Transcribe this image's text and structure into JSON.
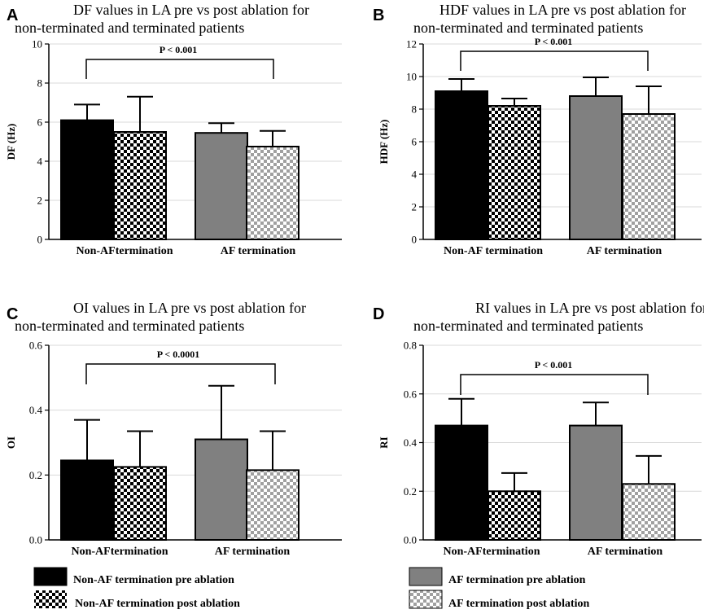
{
  "series_names": [
    "Non-AF termination pre ablation",
    "Non-AF termination post ablation",
    "AF termination pre ablation",
    "AF termination post ablation"
  ],
  "colors": {
    "black": "#000000",
    "gray": "#808080",
    "checker_dark": "#000000",
    "checker_light_bg": "#ffffff",
    "checker_light_fg": "#a0a0a0",
    "grid": "#d9d9d9"
  },
  "chart_data": [
    {
      "panel": "A",
      "type": "bar",
      "title_lines": [
        "DF  values  in LA pre vs post ablation for",
        "non-terminated and terminated patients"
      ],
      "ylabel": "DF  (Hz)",
      "ylim": [
        0,
        10
      ],
      "yticks": [
        0,
        2,
        4,
        6,
        8,
        10
      ],
      "ytick_labels": [
        "0",
        "2",
        "4",
        "6",
        "8",
        "10"
      ],
      "categories": [
        "Non-AFtermination",
        "AF termination"
      ],
      "series": [
        {
          "name": "Non-AF termination pre ablation",
          "category": 0,
          "value": 6.1,
          "error": 0.8
        },
        {
          "name": "Non-AF termination post ablation",
          "category": 0,
          "value": 5.5,
          "error": 1.8
        },
        {
          "name": "AF termination pre ablation",
          "category": 1,
          "value": 5.45,
          "error": 0.5
        },
        {
          "name": "AF termination post ablation",
          "category": 1,
          "value": 4.75,
          "error": 0.8
        }
      ],
      "pvalue": "P < 0.001"
    },
    {
      "panel": "B",
      "type": "bar",
      "title_lines": [
        "HDF values in LA pre vs post ablation for",
        "non-terminated and terminated patients"
      ],
      "ylabel": "HDF (Hz)",
      "ylim": [
        0,
        12
      ],
      "yticks": [
        0,
        2,
        4,
        6,
        8,
        10,
        12
      ],
      "ytick_labels": [
        "0",
        "2",
        "4",
        "6",
        "8",
        "10",
        "12"
      ],
      "categories": [
        "Non-AF termination",
        "AF termination"
      ],
      "series": [
        {
          "name": "Non-AF termination pre ablation",
          "category": 0,
          "value": 9.1,
          "error": 0.75
        },
        {
          "name": "Non-AF termination post ablation",
          "category": 0,
          "value": 8.2,
          "error": 0.45
        },
        {
          "name": "AF termination pre ablation",
          "category": 1,
          "value": 8.8,
          "error": 1.15
        },
        {
          "name": "AF termination post ablation",
          "category": 1,
          "value": 7.7,
          "error": 1.7
        }
      ],
      "pvalue": "P < 0.001"
    },
    {
      "panel": "C",
      "type": "bar",
      "title_lines": [
        "OI values in LA pre vs post ablation for",
        "non-terminated and terminated patients"
      ],
      "ylabel": "OI",
      "ylim": [
        0,
        0.6
      ],
      "yticks": [
        0,
        0.2,
        0.4,
        0.6
      ],
      "ytick_labels": [
        "0.0",
        "0.2",
        "0.4",
        "0.6"
      ],
      "categories": [
        "Non-AFtermination",
        "AF termination"
      ],
      "series": [
        {
          "name": "Non-AF termination pre ablation",
          "category": 0,
          "value": 0.245,
          "error": 0.125
        },
        {
          "name": "Non-AF termination post ablation",
          "category": 0,
          "value": 0.225,
          "error": 0.11
        },
        {
          "name": "AF termination pre ablation",
          "category": 1,
          "value": 0.31,
          "error": 0.165
        },
        {
          "name": "AF termination post ablation",
          "category": 1,
          "value": 0.215,
          "error": 0.12
        }
      ],
      "pvalue": "P < 0.0001"
    },
    {
      "panel": "D",
      "type": "bar",
      "title_lines": [
        "RI values in LA pre vs post ablation for",
        "non-terminated and terminated patients"
      ],
      "ylabel": "RI",
      "ylim": [
        0,
        0.8
      ],
      "yticks": [
        0,
        0.2,
        0.4,
        0.6,
        0.8
      ],
      "ytick_labels": [
        "0.0",
        "0.2",
        "0.4",
        "0.6",
        "0.8"
      ],
      "categories": [
        "Non-AFtermination",
        "AF termination"
      ],
      "series": [
        {
          "name": "Non-AF termination pre ablation",
          "category": 0,
          "value": 0.47,
          "error": 0.11
        },
        {
          "name": "Non-AF termination post ablation",
          "category": 0,
          "value": 0.2,
          "error": 0.075
        },
        {
          "name": "AF termination pre ablation",
          "category": 1,
          "value": 0.47,
          "error": 0.095
        },
        {
          "name": "AF termination post ablation",
          "category": 1,
          "value": 0.23,
          "error": 0.115
        }
      ],
      "pvalue": "P < 0.001"
    }
  ]
}
